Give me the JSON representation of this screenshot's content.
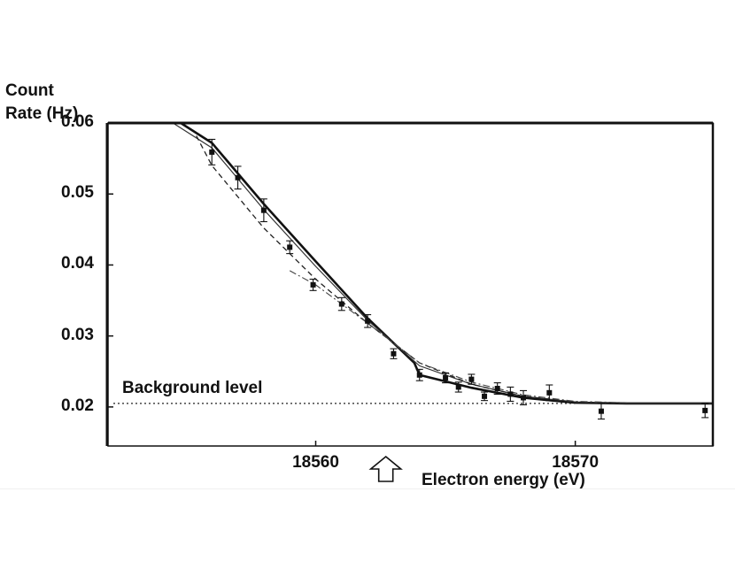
{
  "chart_data": {
    "type": "scatter",
    "title": "",
    "ylabel_line1": "Count",
    "ylabel_line2": "Rate (Hz)",
    "xlabel": "Electron energy (eV)",
    "xlim": [
      18552,
      18575.3
    ],
    "ylim": [
      0.0145,
      0.06
    ],
    "yticks": [
      "0.06",
      "0.05",
      "0.04",
      "0.03",
      "0.02"
    ],
    "ytick_values": [
      0.06,
      0.05,
      0.04,
      0.03,
      0.02
    ],
    "xticks": [
      "18560",
      "18570"
    ],
    "xtick_values": [
      18560,
      18570
    ],
    "annotation": "Background level",
    "background_level": 0.0205,
    "endpoint_arrow_x": 18562.7,
    "grid": false,
    "points": [
      {
        "x": 18556.0,
        "y": 0.0559,
        "err": 0.0018
      },
      {
        "x": 18557.0,
        "y": 0.0523,
        "err": 0.0016
      },
      {
        "x": 18558.0,
        "y": 0.0477,
        "err": 0.0016
      },
      {
        "x": 18559.0,
        "y": 0.0425,
        "err": 0.0009
      },
      {
        "x": 18559.9,
        "y": 0.0372,
        "err": 0.0008
      },
      {
        "x": 18561.0,
        "y": 0.0345,
        "err": 0.0009
      },
      {
        "x": 18562.0,
        "y": 0.0321,
        "err": 0.0009
      },
      {
        "x": 18563.0,
        "y": 0.0275,
        "err": 0.0007
      },
      {
        "x": 18564.0,
        "y": 0.0245,
        "err": 0.0008
      },
      {
        "x": 18565.0,
        "y": 0.0241,
        "err": 0.0007
      },
      {
        "x": 18565.5,
        "y": 0.0228,
        "err": 0.0007
      },
      {
        "x": 18566.0,
        "y": 0.0239,
        "err": 0.0007
      },
      {
        "x": 18566.5,
        "y": 0.0215,
        "err": 0.0006
      },
      {
        "x": 18567.0,
        "y": 0.0226,
        "err": 0.0008
      },
      {
        "x": 18567.5,
        "y": 0.0218,
        "err": 0.001
      },
      {
        "x": 18568.0,
        "y": 0.0213,
        "err": 0.001
      },
      {
        "x": 18569.0,
        "y": 0.022,
        "err": 0.0011
      },
      {
        "x": 18571.0,
        "y": 0.0194,
        "err": 0.0011
      },
      {
        "x": 18575.0,
        "y": 0.0195,
        "err": 0.001
      }
    ],
    "series": [
      {
        "style": "solid-thick",
        "x": [
          18554.8,
          18556,
          18558,
          18560,
          18562,
          18563.8,
          18564.0,
          18566,
          18568,
          18570,
          18572,
          18575.3
        ],
        "y": [
          0.0605,
          0.0572,
          0.0486,
          0.0405,
          0.0325,
          0.0262,
          0.0245,
          0.0227,
          0.0213,
          0.0206,
          0.0205,
          0.0205
        ]
      },
      {
        "style": "solid-thin",
        "x": [
          18554.5,
          18556,
          18558,
          18560,
          18562,
          18564,
          18566,
          18568,
          18570,
          18572,
          18575.3
        ],
        "y": [
          0.0605,
          0.0565,
          0.0478,
          0.0398,
          0.0322,
          0.0258,
          0.0232,
          0.0215,
          0.0207,
          0.0205,
          0.0205
        ]
      },
      {
        "style": "dashed",
        "x": [
          18555.4,
          18556,
          18558,
          18560,
          18562,
          18564,
          18566,
          18568,
          18570,
          18572
        ],
        "y": [
          0.0582,
          0.054,
          0.0452,
          0.038,
          0.0318,
          0.0262,
          0.0232,
          0.0215,
          0.0207,
          0.0205
        ]
      },
      {
        "style": "dash-dot",
        "x": [
          18559,
          18560,
          18562,
          18564,
          18566,
          18568,
          18570,
          18572
        ],
        "y": [
          0.0392,
          0.0372,
          0.0318,
          0.0262,
          0.0235,
          0.0217,
          0.0208,
          0.0206
        ]
      }
    ]
  }
}
